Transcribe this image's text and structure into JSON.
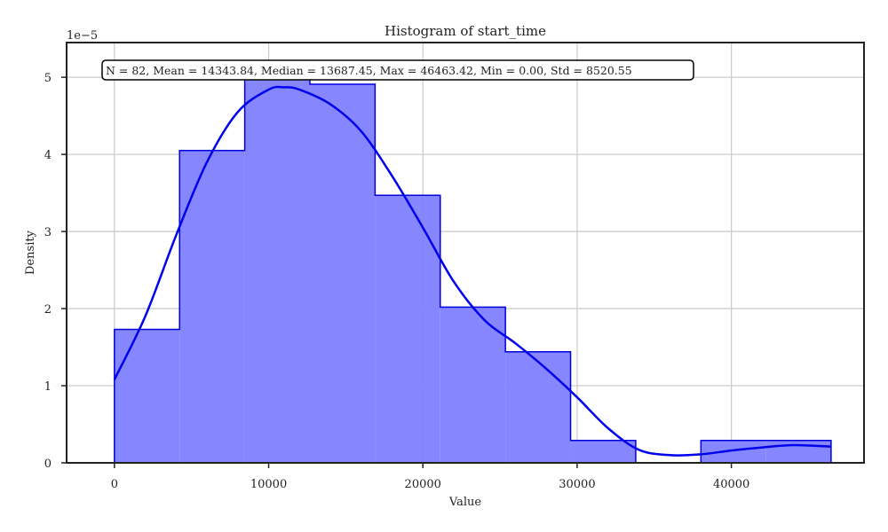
{
  "chart_data": {
    "type": "histogram",
    "title": "Histogram of start_time",
    "xlabel": "Value",
    "ylabel": "Density",
    "y_offset_label": "1e−5",
    "y_scale": 1e-05,
    "xlim": [
      -3100,
      48600
    ],
    "ylim": [
      0,
      5.45
    ],
    "x_ticks": [
      0,
      10000,
      20000,
      30000,
      40000
    ],
    "y_ticks": [
      0,
      1,
      2,
      3,
      4,
      5
    ],
    "grid": true,
    "bar_fill": "#8080ff",
    "bar_edge": "#0000dd",
    "kde_color": "#0000ee",
    "bins": [
      {
        "x0": 0,
        "x1": 4225,
        "density": 1.73
      },
      {
        "x0": 4225,
        "x1": 8450,
        "density": 4.05
      },
      {
        "x0": 8450,
        "x1": 12675,
        "density": 5.02
      },
      {
        "x0": 12675,
        "x1": 16900,
        "density": 4.91
      },
      {
        "x0": 16900,
        "x1": 21125,
        "density": 3.47
      },
      {
        "x0": 21125,
        "x1": 25350,
        "density": 2.02
      },
      {
        "x0": 25350,
        "x1": 29575,
        "density": 1.44
      },
      {
        "x0": 29575,
        "x1": 33800,
        "density": 0.29
      },
      {
        "x0": 33800,
        "x1": 38025,
        "density": 0.0
      },
      {
        "x0": 38025,
        "x1": 42250,
        "density": 0.29
      },
      {
        "x0": 42250,
        "x1": 46463,
        "density": 0.29
      }
    ],
    "kde": {
      "x": [
        0,
        2000,
        4000,
        6000,
        8000,
        10000,
        11000,
        12000,
        14000,
        16000,
        18000,
        20000,
        22000,
        24000,
        26000,
        28000,
        30000,
        32000,
        34000,
        36000,
        38000,
        40000,
        42000,
        44000,
        46463
      ],
      "y": [
        1.08,
        1.9,
        2.95,
        3.9,
        4.55,
        4.84,
        4.87,
        4.84,
        4.65,
        4.3,
        3.72,
        3.05,
        2.35,
        1.85,
        1.55,
        1.22,
        0.85,
        0.45,
        0.17,
        0.1,
        0.11,
        0.16,
        0.2,
        0.23,
        0.21
      ]
    },
    "stats_text": "N = 82, Mean = 14343.84, Median = 13687.45, Max = 46463.42, Min = 0.00, Std = 8520.55"
  }
}
